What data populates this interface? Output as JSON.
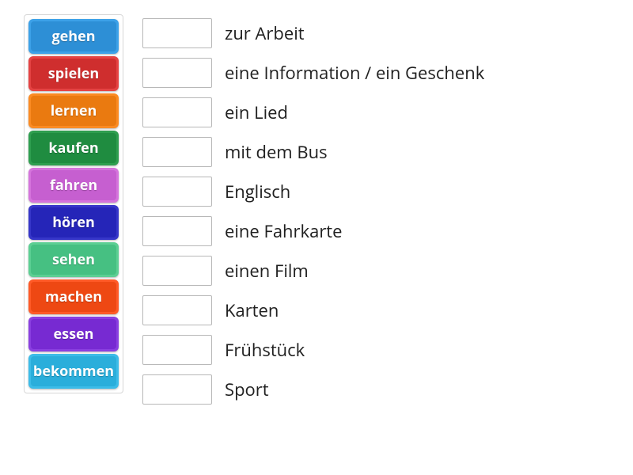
{
  "tiles": [
    {
      "label": "gehen",
      "bg": "#3ca1e8",
      "inner": "#2d8fd6"
    },
    {
      "label": "spielen",
      "bg": "#e54343",
      "inner": "#cf2e2e"
    },
    {
      "label": "lernen",
      "bg": "#fb8b23",
      "inner": "#ea7a10"
    },
    {
      "label": "kaufen",
      "bg": "#2e9e4f",
      "inner": "#1f8c40"
    },
    {
      "label": "fahren",
      "bg": "#d574dc",
      "inner": "#c65fd0"
    },
    {
      "label": "hören",
      "bg": "#3636c9",
      "inner": "#2525b8"
    },
    {
      "label": "sehen",
      "bg": "#5ccf93",
      "inner": "#46c082"
    },
    {
      "label": "machen",
      "bg": "#ff5a27",
      "inner": "#ee4813"
    },
    {
      "label": "essen",
      "bg": "#8a3fe0",
      "inner": "#772ad2"
    },
    {
      "label": "bekommen",
      "bg": "#3cbce8",
      "inner": "#2aaedb"
    }
  ],
  "targets": [
    {
      "phrase": "zur Arbeit"
    },
    {
      "phrase": "eine Information / ein Geschenk"
    },
    {
      "phrase": "ein Lied"
    },
    {
      "phrase": "mit dem Bus"
    },
    {
      "phrase": "Englisch"
    },
    {
      "phrase": "eine Fahrkarte"
    },
    {
      "phrase": "einen Film"
    },
    {
      "phrase": "Karten"
    },
    {
      "phrase": "Frühstück"
    },
    {
      "phrase": "Sport"
    }
  ],
  "text_color": "#202020",
  "slot_border": "#b8b8b8",
  "container_border": "#d7d7d7"
}
